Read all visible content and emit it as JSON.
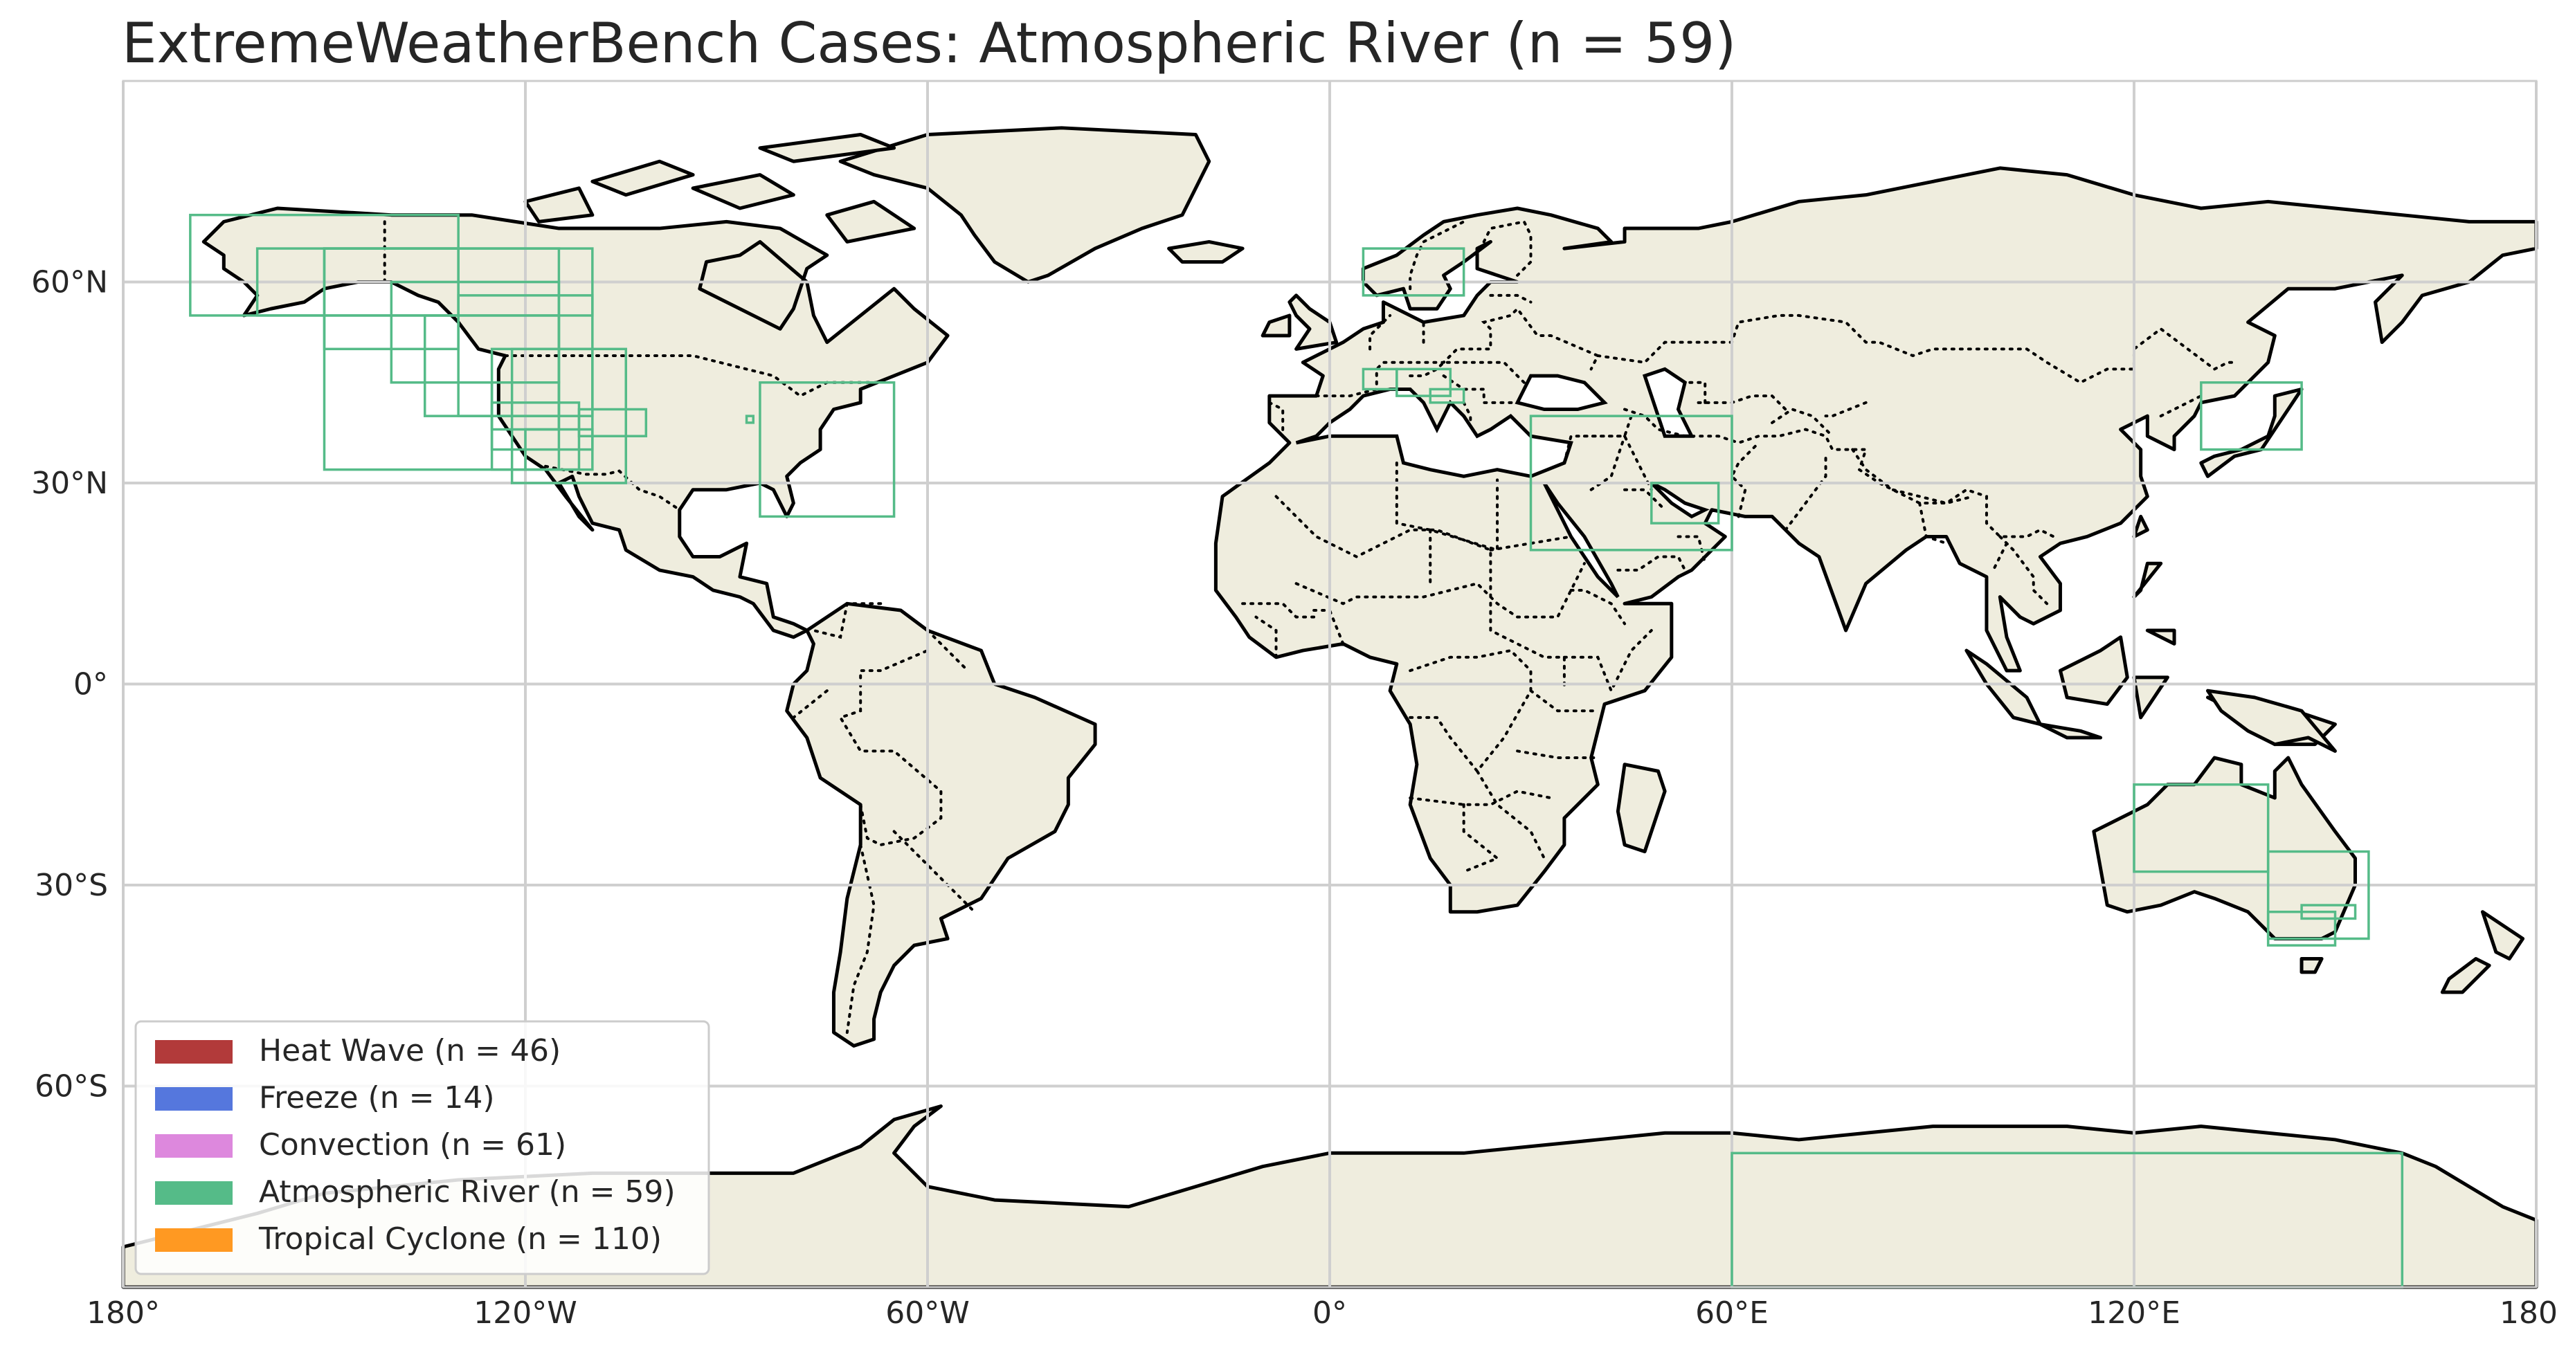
{
  "title": "ExtremeWeatherBench Cases: Atmospheric River (n = 59)",
  "map": {
    "projection": "PlateCarree",
    "lon_range": [
      -180,
      180
    ],
    "lat_range": [
      -90,
      90
    ],
    "ocean_color": "#ffffff",
    "land_color": "#efedde",
    "gridlines": true,
    "x_ticks": [
      {
        "value": -180,
        "label": "180°"
      },
      {
        "value": -120,
        "label": "120°W"
      },
      {
        "value": -60,
        "label": "60°W"
      },
      {
        "value": 0,
        "label": "0°"
      },
      {
        "value": 60,
        "label": "60°E"
      },
      {
        "value": 120,
        "label": "120°E"
      },
      {
        "value": 180,
        "label": "180°"
      }
    ],
    "y_ticks": [
      {
        "value": 60,
        "label": "60°N"
      },
      {
        "value": 30,
        "label": "30°N"
      },
      {
        "value": 0,
        "label": "0°"
      },
      {
        "value": -30,
        "label": "30°S"
      },
      {
        "value": -60,
        "label": "60°S"
      }
    ]
  },
  "legend": {
    "placement": "lower-left",
    "items": [
      {
        "label": "Heat Wave (n = 46)",
        "color": "#b23a3a"
      },
      {
        "label": "Freeze (n = 14)",
        "color": "#5577dd"
      },
      {
        "label": "Convection (n = 61)",
        "color": "#dd88dd"
      },
      {
        "label": "Atmospheric River (n = 59)",
        "color": "#55bb88"
      },
      {
        "label": "Tropical Cyclone (n = 110)",
        "color": "#ff9922"
      }
    ]
  },
  "case_box_color": "#55bb88",
  "case_boxes": [
    {
      "lon": [
        -170,
        -130
      ],
      "lat": [
        55,
        70
      ]
    },
    {
      "lon": [
        -160,
        -110
      ],
      "lat": [
        55,
        65
      ]
    },
    {
      "lon": [
        -150,
        -130
      ],
      "lat": [
        50,
        65
      ]
    },
    {
      "lon": [
        -150,
        -115
      ],
      "lat": [
        32,
        65
      ]
    },
    {
      "lon": [
        -140,
        -115
      ],
      "lat": [
        45,
        60
      ]
    },
    {
      "lon": [
        -135,
        -115
      ],
      "lat": [
        40,
        55
      ]
    },
    {
      "lon": [
        -130,
        -110
      ],
      "lat": [
        40,
        58
      ]
    },
    {
      "lon": [
        -125,
        -110
      ],
      "lat": [
        35,
        50
      ]
    },
    {
      "lon": [
        -122,
        -105
      ],
      "lat": [
        30,
        50
      ]
    },
    {
      "lon": [
        -125,
        -112
      ],
      "lat": [
        32,
        42
      ]
    },
    {
      "lon": [
        -120,
        -110
      ],
      "lat": [
        32,
        38
      ]
    },
    {
      "lon": [
        -125,
        -115
      ],
      "lat": [
        38,
        45
      ]
    },
    {
      "lon": [
        -112,
        -102
      ],
      "lat": [
        37,
        41
      ]
    },
    {
      "lon": [
        -85,
        -65
      ],
      "lat": [
        25,
        45
      ]
    },
    {
      "lon": [
        -87,
        -86
      ],
      "lat": [
        39,
        40
      ]
    },
    {
      "lon": [
        5,
        20
      ],
      "lat": [
        58,
        65
      ]
    },
    {
      "lon": [
        5,
        10
      ],
      "lat": [
        44,
        47
      ]
    },
    {
      "lon": [
        10,
        18
      ],
      "lat": [
        43,
        47
      ]
    },
    {
      "lon": [
        15,
        20
      ],
      "lat": [
        42,
        44
      ]
    },
    {
      "lon": [
        30,
        60
      ],
      "lat": [
        20,
        40
      ]
    },
    {
      "lon": [
        48,
        58
      ],
      "lat": [
        24,
        30
      ]
    },
    {
      "lon": [
        130,
        145
      ],
      "lat": [
        35,
        45
      ]
    },
    {
      "lon": [
        120,
        140
      ],
      "lat": [
        -28,
        -15
      ]
    },
    {
      "lon": [
        140,
        155
      ],
      "lat": [
        -38,
        -25
      ]
    },
    {
      "lon": [
        140,
        150
      ],
      "lat": [
        -39,
        -34
      ]
    },
    {
      "lon": [
        145,
        153
      ],
      "lat": [
        -35,
        -33
      ]
    },
    {
      "lon": [
        60,
        160
      ],
      "lat": [
        -90,
        -70
      ]
    }
  ]
}
